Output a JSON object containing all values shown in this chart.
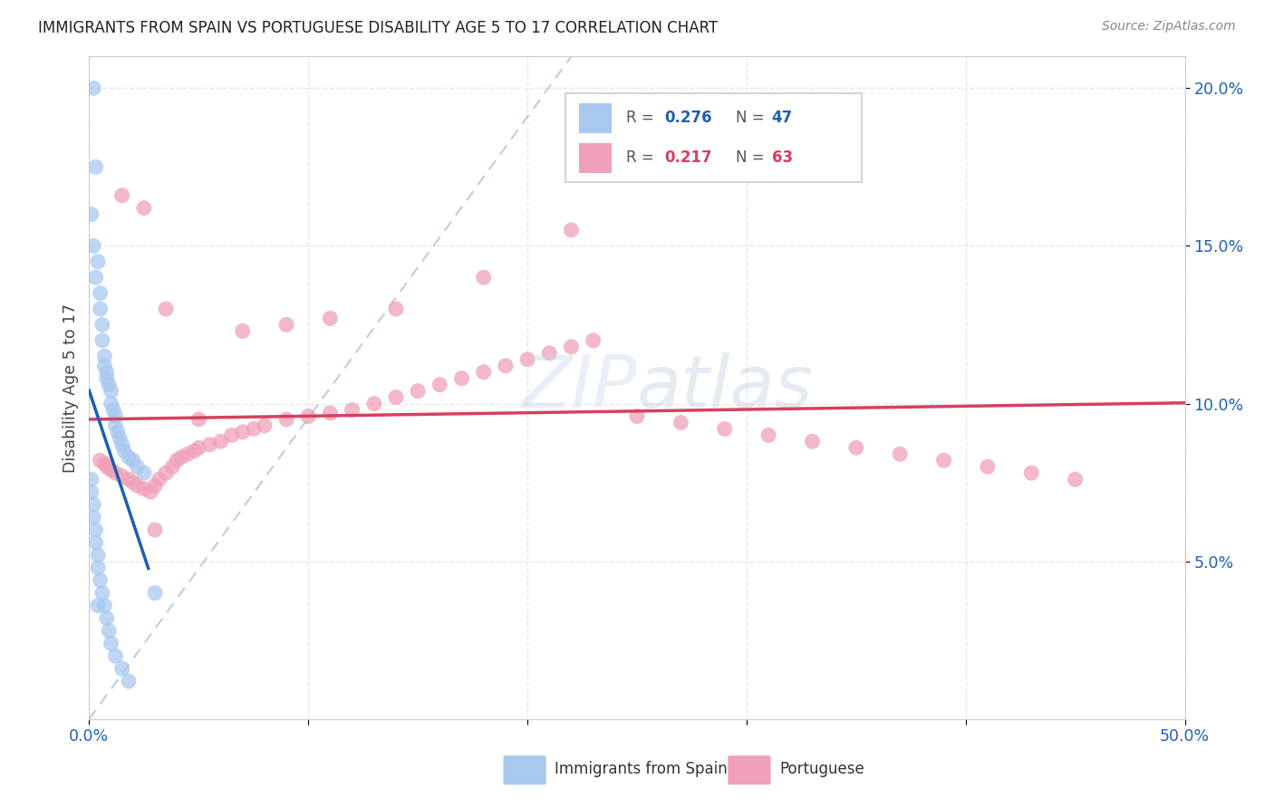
{
  "title": "IMMIGRANTS FROM SPAIN VS PORTUGUESE DISABILITY AGE 5 TO 17 CORRELATION CHART",
  "source": "Source: ZipAtlas.com",
  "ylabel": "Disability Age 5 to 17",
  "legend_label_blue": "Immigrants from Spain",
  "legend_label_pink": "Portuguese",
  "xlim": [
    0.0,
    0.5
  ],
  "ylim": [
    0.0,
    0.21
  ],
  "yticks": [
    0.05,
    0.1,
    0.15,
    0.2
  ],
  "ytick_labels": [
    "5.0%",
    "10.0%",
    "15.0%",
    "20.0%"
  ],
  "xticks": [
    0.0,
    0.1,
    0.2,
    0.3,
    0.4,
    0.5
  ],
  "blue_color": "#a8c8f0",
  "pink_color": "#f0a0b8",
  "blue_line_color": "#1a5fb4",
  "pink_line_color": "#d64060",
  "grid_color": "#e8e8e8",
  "dash_color": "#b8c8e0",
  "watermark_color": "#c8d8ec",
  "blue_r": "0.276",
  "blue_n": "47",
  "pink_r": "0.217",
  "pink_n": "63",
  "blue_dots_x": [
    0.002,
    0.003,
    0.004,
    0.005,
    0.005,
    0.006,
    0.006,
    0.007,
    0.007,
    0.008,
    0.008,
    0.009,
    0.01,
    0.01,
    0.011,
    0.012,
    0.012,
    0.013,
    0.014,
    0.015,
    0.016,
    0.018,
    0.02,
    0.022,
    0.025,
    0.001,
    0.001,
    0.002,
    0.002,
    0.003,
    0.003,
    0.004,
    0.004,
    0.005,
    0.006,
    0.007,
    0.008,
    0.009,
    0.01,
    0.012,
    0.015,
    0.018,
    0.001,
    0.002,
    0.003,
    0.004,
    0.03
  ],
  "blue_dots_y": [
    0.2,
    0.175,
    0.145,
    0.135,
    0.13,
    0.125,
    0.12,
    0.115,
    0.112,
    0.11,
    0.108,
    0.106,
    0.104,
    0.1,
    0.098,
    0.096,
    0.093,
    0.091,
    0.089,
    0.087,
    0.085,
    0.083,
    0.082,
    0.08,
    0.078,
    0.076,
    0.072,
    0.068,
    0.064,
    0.06,
    0.056,
    0.052,
    0.048,
    0.044,
    0.04,
    0.036,
    0.032,
    0.028,
    0.024,
    0.02,
    0.016,
    0.012,
    0.16,
    0.15,
    0.14,
    0.036,
    0.04
  ],
  "pink_dots_x": [
    0.005,
    0.007,
    0.008,
    0.01,
    0.012,
    0.015,
    0.018,
    0.02,
    0.022,
    0.025,
    0.028,
    0.03,
    0.032,
    0.035,
    0.038,
    0.04,
    0.042,
    0.045,
    0.048,
    0.05,
    0.055,
    0.06,
    0.065,
    0.07,
    0.075,
    0.08,
    0.09,
    0.1,
    0.11,
    0.12,
    0.13,
    0.14,
    0.15,
    0.16,
    0.17,
    0.18,
    0.19,
    0.2,
    0.21,
    0.22,
    0.23,
    0.25,
    0.27,
    0.29,
    0.31,
    0.33,
    0.35,
    0.37,
    0.39,
    0.41,
    0.43,
    0.45,
    0.015,
    0.025,
    0.035,
    0.05,
    0.07,
    0.09,
    0.11,
    0.14,
    0.18,
    0.22,
    0.03
  ],
  "pink_dots_y": [
    0.082,
    0.081,
    0.08,
    0.079,
    0.078,
    0.077,
    0.076,
    0.075,
    0.074,
    0.073,
    0.072,
    0.074,
    0.076,
    0.078,
    0.08,
    0.082,
    0.083,
    0.084,
    0.085,
    0.086,
    0.087,
    0.088,
    0.09,
    0.091,
    0.092,
    0.093,
    0.095,
    0.096,
    0.097,
    0.098,
    0.1,
    0.102,
    0.104,
    0.106,
    0.108,
    0.11,
    0.112,
    0.114,
    0.116,
    0.118,
    0.12,
    0.096,
    0.094,
    0.092,
    0.09,
    0.088,
    0.086,
    0.084,
    0.082,
    0.08,
    0.078,
    0.076,
    0.166,
    0.162,
    0.13,
    0.095,
    0.123,
    0.125,
    0.127,
    0.13,
    0.14,
    0.155,
    0.06
  ]
}
